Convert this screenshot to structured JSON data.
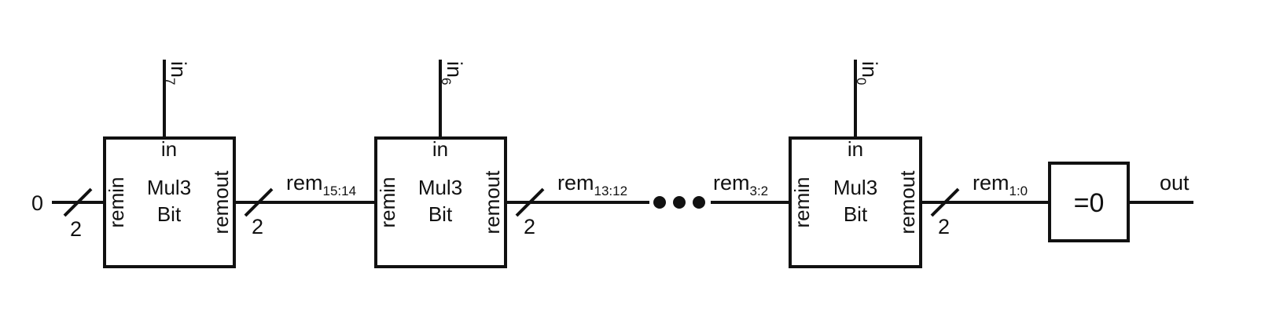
{
  "input_value": "0",
  "output_label": "out",
  "bus_width": "2",
  "ellipsis": "•••",
  "cells": [
    {
      "input_label": "in",
      "input_sub": "7",
      "port_in": "in",
      "port_remin": "remin",
      "port_remout": "remout",
      "title_line1": "Mul3",
      "title_line2": "Bit"
    },
    {
      "input_label": "in",
      "input_sub": "6",
      "port_in": "in",
      "port_remin": "remin",
      "port_remout": "remout",
      "title_line1": "Mul3",
      "title_line2": "Bit"
    },
    {
      "input_label": "in",
      "input_sub": "0",
      "port_in": "in",
      "port_remin": "remin",
      "port_remout": "remout",
      "title_line1": "Mul3",
      "title_line2": "Bit"
    }
  ],
  "signals": [
    {
      "base": "rem",
      "sub": "15:14"
    },
    {
      "base": "rem",
      "sub": "13:12"
    },
    {
      "base": "rem",
      "sub": "3:2"
    },
    {
      "base": "rem",
      "sub": "1:0"
    }
  ],
  "zero_check_label": "=0"
}
